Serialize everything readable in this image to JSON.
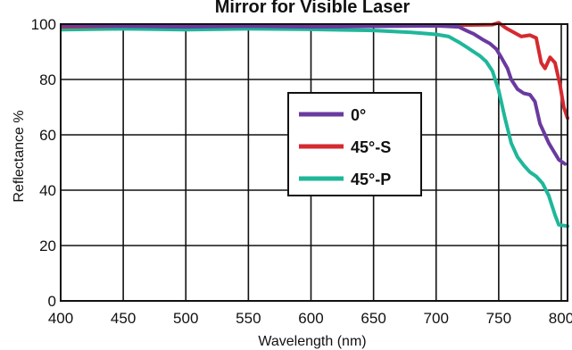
{
  "chart_data": {
    "type": "line",
    "title": "Mirror for Visible Laser",
    "xlabel": "Wavelength (nm)",
    "ylabel": "Reflectance %",
    "xlim": [
      400,
      805
    ],
    "ylim": [
      0,
      100
    ],
    "x_ticks": [
      400,
      450,
      500,
      550,
      600,
      650,
      700,
      750,
      800
    ],
    "y_ticks": [
      0,
      20,
      40,
      60,
      80,
      100
    ],
    "grid": true,
    "legend_position": "center-right",
    "series": [
      {
        "name": "0°",
        "color": "#6a3aa0",
        "points": [
          [
            400,
            99.5
          ],
          [
            450,
            99.3
          ],
          [
            500,
            99.0
          ],
          [
            550,
            99.3
          ],
          [
            600,
            99.0
          ],
          [
            650,
            99.2
          ],
          [
            700,
            99.4
          ],
          [
            718,
            99.0
          ],
          [
            725,
            97.5
          ],
          [
            730,
            96.5
          ],
          [
            737,
            94.5
          ],
          [
            743,
            93.0
          ],
          [
            748,
            91.0
          ],
          [
            752,
            88.0
          ],
          [
            757,
            84.0
          ],
          [
            760,
            80.0
          ],
          [
            765,
            76.5
          ],
          [
            770,
            75.0
          ],
          [
            775,
            74.5
          ],
          [
            779,
            72.0
          ],
          [
            783,
            64.0
          ],
          [
            787,
            60.0
          ],
          [
            790,
            57.0
          ],
          [
            794,
            54.0
          ],
          [
            798,
            51.0
          ],
          [
            803,
            49.5
          ]
        ]
      },
      {
        "name": "45°-S",
        "color": "#d42a30",
        "points": [
          [
            400,
            99.0
          ],
          [
            450,
            99.3
          ],
          [
            500,
            99.1
          ],
          [
            550,
            99.4
          ],
          [
            600,
            99.2
          ],
          [
            650,
            99.4
          ],
          [
            700,
            99.5
          ],
          [
            745,
            99.8
          ],
          [
            750,
            100.5
          ],
          [
            756,
            98.5
          ],
          [
            762,
            97.0
          ],
          [
            768,
            95.5
          ],
          [
            775,
            96.0
          ],
          [
            780,
            95.0
          ],
          [
            784,
            86.0
          ],
          [
            787,
            84.0
          ],
          [
            791,
            88.0
          ],
          [
            795,
            86.0
          ],
          [
            799,
            78.0
          ],
          [
            802,
            70.0
          ],
          [
            805,
            66.0
          ]
        ]
      },
      {
        "name": "45°-P",
        "color": "#1fb79a",
        "points": [
          [
            400,
            98.0
          ],
          [
            450,
            98.3
          ],
          [
            500,
            98.0
          ],
          [
            550,
            98.3
          ],
          [
            600,
            98.1
          ],
          [
            650,
            97.7
          ],
          [
            680,
            97.0
          ],
          [
            700,
            96.3
          ],
          [
            710,
            95.5
          ],
          [
            718,
            93.5
          ],
          [
            725,
            91.5
          ],
          [
            730,
            90.0
          ],
          [
            735,
            88.5
          ],
          [
            740,
            86.5
          ],
          [
            745,
            83.0
          ],
          [
            750,
            76.0
          ],
          [
            755,
            66.0
          ],
          [
            760,
            57.0
          ],
          [
            765,
            52.0
          ],
          [
            770,
            49.0
          ],
          [
            775,
            46.5
          ],
          [
            780,
            45.0
          ],
          [
            785,
            42.5
          ],
          [
            790,
            38.0
          ],
          [
            795,
            31.0
          ],
          [
            798,
            27.5
          ],
          [
            805,
            27.0
          ]
        ]
      }
    ]
  }
}
